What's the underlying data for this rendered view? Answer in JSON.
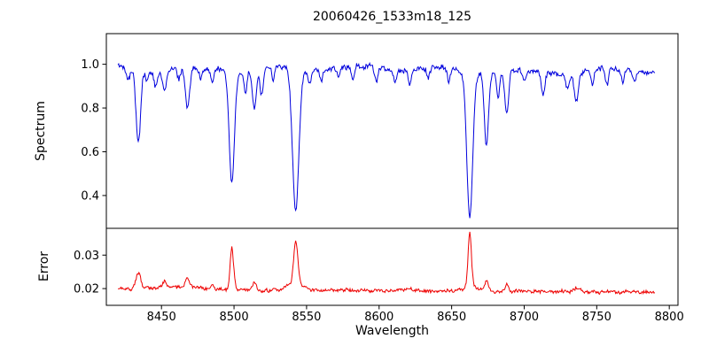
{
  "title": "20060426_1533m18_125",
  "x_axis": {
    "label": "Wavelength",
    "xlim": [
      8412,
      8806
    ],
    "data_range": [
      8420,
      8790
    ],
    "ticks": [
      {
        "value": 8450,
        "label": "8450"
      },
      {
        "value": 8500,
        "label": "8500"
      },
      {
        "value": 8550,
        "label": "8550"
      },
      {
        "value": 8600,
        "label": "8600"
      },
      {
        "value": 8650,
        "label": "8650"
      },
      {
        "value": 8700,
        "label": "8700"
      },
      {
        "value": 8750,
        "label": "8750"
      },
      {
        "value": 8800,
        "label": "8800"
      }
    ]
  },
  "chart_data": [
    {
      "type": "line",
      "name": "spectrum",
      "ylabel": "Spectrum",
      "color": "#0000dd",
      "ylim": [
        0.25,
        1.14
      ],
      "yticks": [
        {
          "value": 1.0,
          "label": "1.0"
        },
        {
          "value": 0.8,
          "label": "0.8"
        },
        {
          "value": 0.6,
          "label": "0.6"
        },
        {
          "value": 0.4,
          "label": "0.4"
        }
      ],
      "continuum": 0.975,
      "noise_amplitude": 0.02,
      "absorption_features": [
        {
          "center": 8427.0,
          "depth": 0.06,
          "sigma": 1.2
        },
        {
          "center": 8434.0,
          "depth": 0.34,
          "sigma": 1.6
        },
        {
          "center": 8440.0,
          "depth": 0.05,
          "sigma": 1.0
        },
        {
          "center": 8446.0,
          "depth": 0.07,
          "sigma": 1.2
        },
        {
          "center": 8452.0,
          "depth": 0.1,
          "sigma": 1.3
        },
        {
          "center": 8462.0,
          "depth": 0.05,
          "sigma": 1.0
        },
        {
          "center": 8468.0,
          "depth": 0.19,
          "sigma": 1.5
        },
        {
          "center": 8477.0,
          "depth": 0.05,
          "sigma": 1.0
        },
        {
          "center": 8485.0,
          "depth": 0.06,
          "sigma": 1.0
        },
        {
          "center": 8498.5,
          "depth": 0.5,
          "sigma": 1.8
        },
        {
          "center": 8508.0,
          "depth": 0.1,
          "sigma": 1.1
        },
        {
          "center": 8514.0,
          "depth": 0.18,
          "sigma": 1.3
        },
        {
          "center": 8519.0,
          "depth": 0.12,
          "sigma": 1.1
        },
        {
          "center": 8527.0,
          "depth": 0.06,
          "sigma": 1.0
        },
        {
          "center": 8542.5,
          "depth": 0.65,
          "sigma": 2.2
        },
        {
          "center": 8552.0,
          "depth": 0.06,
          "sigma": 1.0
        },
        {
          "center": 8560.0,
          "depth": 0.05,
          "sigma": 1.0
        },
        {
          "center": 8572.0,
          "depth": 0.04,
          "sigma": 1.0
        },
        {
          "center": 8582.0,
          "depth": 0.07,
          "sigma": 1.0
        },
        {
          "center": 8598.0,
          "depth": 0.06,
          "sigma": 1.0
        },
        {
          "center": 8611.0,
          "depth": 0.05,
          "sigma": 1.0
        },
        {
          "center": 8621.0,
          "depth": 0.07,
          "sigma": 1.0
        },
        {
          "center": 8634.0,
          "depth": 0.05,
          "sigma": 1.0
        },
        {
          "center": 8648.0,
          "depth": 0.06,
          "sigma": 1.0
        },
        {
          "center": 8662.5,
          "depth": 0.66,
          "sigma": 2.0
        },
        {
          "center": 8674.0,
          "depth": 0.33,
          "sigma": 1.4
        },
        {
          "center": 8682.0,
          "depth": 0.12,
          "sigma": 1.0
        },
        {
          "center": 8688.0,
          "depth": 0.2,
          "sigma": 1.3
        },
        {
          "center": 8700.0,
          "depth": 0.05,
          "sigma": 1.0
        },
        {
          "center": 8713.0,
          "depth": 0.1,
          "sigma": 1.2
        },
        {
          "center": 8730.0,
          "depth": 0.07,
          "sigma": 1.2
        },
        {
          "center": 8736.0,
          "depth": 0.13,
          "sigma": 1.4
        },
        {
          "center": 8747.0,
          "depth": 0.06,
          "sigma": 1.0
        },
        {
          "center": 8757.0,
          "depth": 0.08,
          "sigma": 1.0
        },
        {
          "center": 8768.0,
          "depth": 0.07,
          "sigma": 1.0
        },
        {
          "center": 8776.0,
          "depth": 0.05,
          "sigma": 1.0
        }
      ]
    },
    {
      "type": "line",
      "name": "error",
      "ylabel": "Error",
      "color": "#ee0000",
      "ylim": [
        0.015,
        0.038
      ],
      "yticks": [
        {
          "value": 0.03,
          "label": "0.03"
        },
        {
          "value": 0.02,
          "label": "0.02"
        }
      ],
      "baseline": 0.0197,
      "baseline_slope_per_angstrom": -1.9e-06,
      "noise_amplitude": 0.0009,
      "peak_features": [
        {
          "center": 8434.0,
          "height": 0.0045,
          "sigma": 1.6
        },
        {
          "center": 8452.0,
          "height": 0.0018,
          "sigma": 1.2
        },
        {
          "center": 8460.0,
          "height": 0.0008,
          "sigma": 20.0
        },
        {
          "center": 8468.0,
          "height": 0.0028,
          "sigma": 1.5
        },
        {
          "center": 8485.0,
          "height": 0.0012,
          "sigma": 1.0
        },
        {
          "center": 8498.5,
          "height": 0.0125,
          "sigma": 1.2
        },
        {
          "center": 8514.0,
          "height": 0.002,
          "sigma": 1.3
        },
        {
          "center": 8542.5,
          "height": 0.0125,
          "sigma": 1.4
        },
        {
          "center": 8542.5,
          "height": 0.0025,
          "sigma": 5.0
        },
        {
          "center": 8621.0,
          "height": 0.001,
          "sigma": 1.0
        },
        {
          "center": 8662.5,
          "height": 0.0155,
          "sigma": 1.1
        },
        {
          "center": 8662.5,
          "height": 0.002,
          "sigma": 4.0
        },
        {
          "center": 8674.0,
          "height": 0.0028,
          "sigma": 1.2
        },
        {
          "center": 8688.0,
          "height": 0.0018,
          "sigma": 1.2
        },
        {
          "center": 8736.0,
          "height": 0.001,
          "sigma": 1.5
        }
      ]
    }
  ]
}
